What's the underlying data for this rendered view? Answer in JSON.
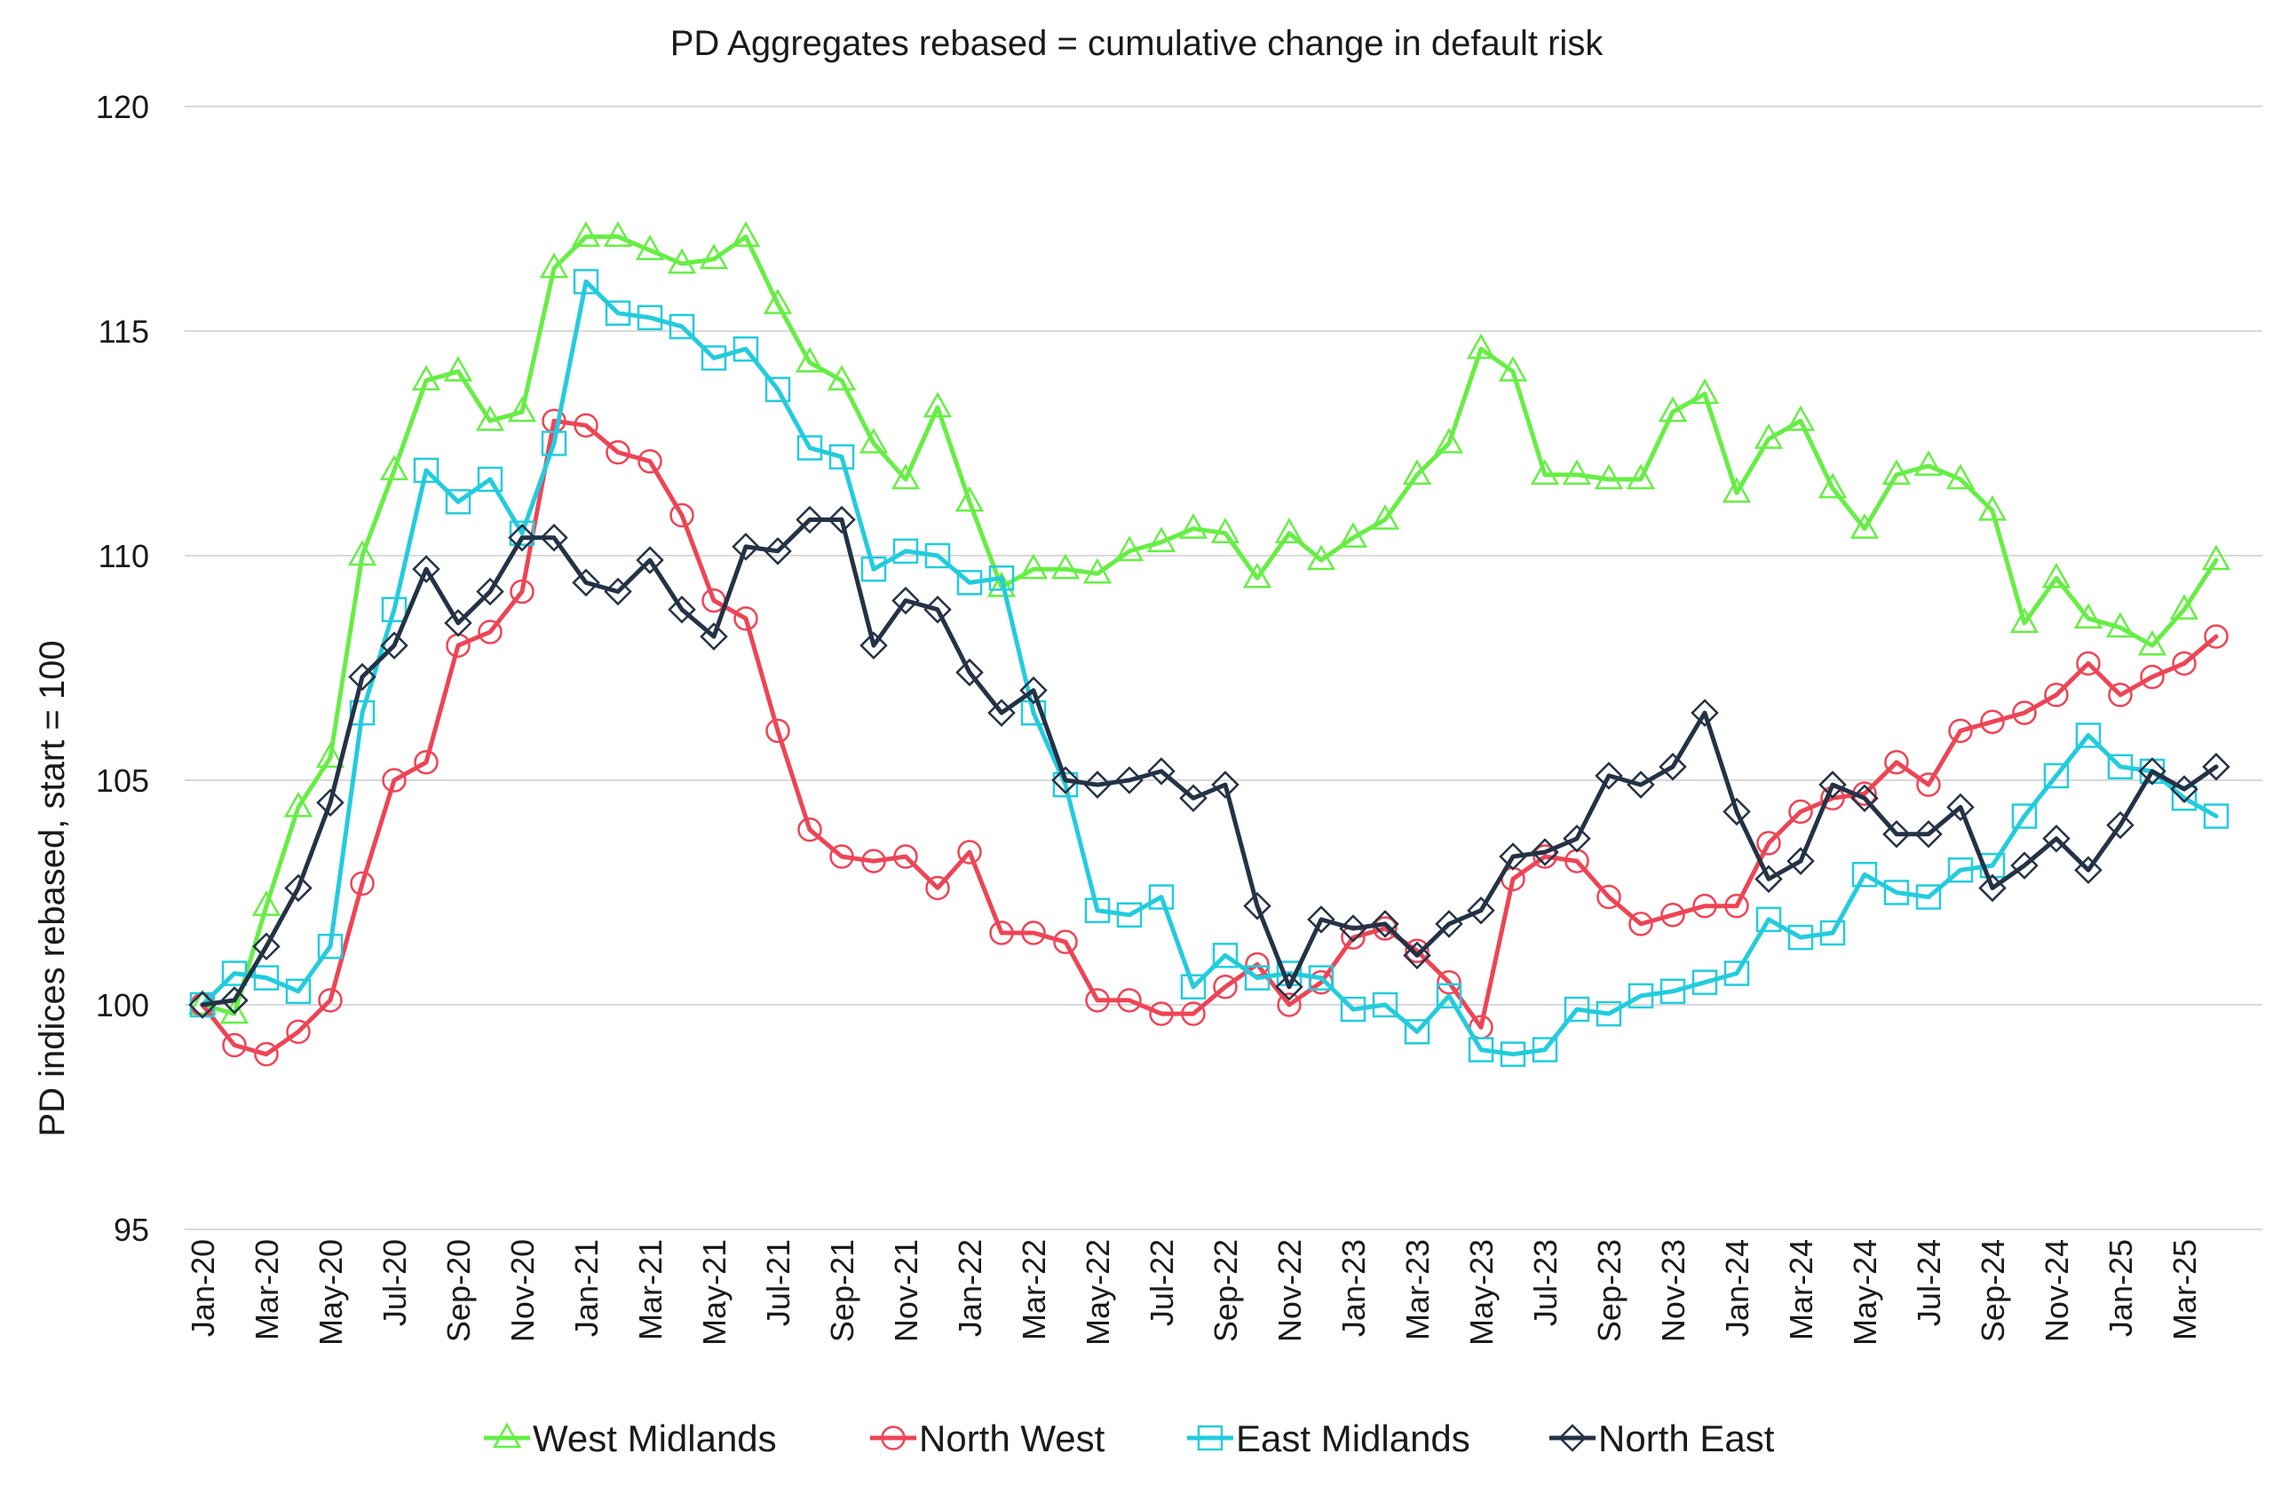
{
  "chart_data": {
    "type": "line",
    "title": "PD Aggregates rebased = cumulative change in default risk",
    "xlabel": "",
    "ylabel": "PD indices rebased, start = 100",
    "ylim": [
      95,
      120
    ],
    "yticks": [
      95,
      100,
      105,
      110,
      115,
      120
    ],
    "grid": true,
    "legend_position": "bottom",
    "tick_labels": [
      "Jan-20",
      "Mar-20",
      "May-20",
      "Jul-20",
      "Sep-20",
      "Nov-20",
      "Jan-21",
      "Mar-21",
      "May-21",
      "Jul-21",
      "Sep-21",
      "Nov-21",
      "Jan-22",
      "Mar-22",
      "May-22",
      "Jul-22",
      "Sep-22",
      "Nov-22",
      "Jan-23",
      "Mar-23",
      "May-23",
      "Jul-23",
      "Sep-23",
      "Nov-23",
      "Jan-24",
      "Mar-24",
      "May-24",
      "Jul-24",
      "Sep-24",
      "Nov-24",
      "Jan-25",
      "Mar-25"
    ],
    "tick_every": 2,
    "n_points": 65,
    "series": [
      {
        "name": "West Midlands",
        "color": "#66ee44",
        "marker": "triangle",
        "values": [
          100,
          99.8,
          102.2,
          104.4,
          105.5,
          110,
          111.9,
          113.9,
          114.1,
          113,
          113.2,
          116.4,
          117.1,
          117.1,
          116.8,
          116.5,
          116.6,
          117.1,
          115.6,
          114.3,
          113.9,
          112.5,
          111.7,
          113.3,
          111.2,
          109.3,
          109.7,
          109.7,
          109.6,
          110.1,
          110.3,
          110.6,
          110.5,
          109.5,
          110.5,
          109.9,
          110.4,
          110.8,
          111.8,
          112.5,
          114.6,
          114.1,
          111.8,
          111.8,
          111.7,
          111.7,
          113.2,
          113.6,
          111.4,
          112.6,
          113,
          111.5,
          110.6,
          111.8,
          112,
          111.7,
          111,
          108.5,
          109.5,
          108.6,
          108.4,
          108,
          108.8,
          109.9,
          null
        ]
      },
      {
        "name": "North West",
        "color": "#ee4455",
        "marker": "circle",
        "values": [
          100,
          99.1,
          98.9,
          99.4,
          100.1,
          102.7,
          105,
          105.4,
          108,
          108.3,
          109.2,
          113,
          112.9,
          112.3,
          112.1,
          110.9,
          109,
          108.6,
          106.1,
          103.9,
          103.3,
          103.2,
          103.3,
          102.6,
          103.4,
          101.6,
          101.6,
          101.4,
          100.1,
          100.1,
          99.8,
          99.8,
          100.4,
          100.9,
          100,
          100.5,
          101.5,
          101.7,
          101.2,
          100.5,
          99.5,
          102.8,
          103.3,
          103.2,
          102.4,
          101.8,
          102,
          102.2,
          102.2,
          103.6,
          104.3,
          104.6,
          104.7,
          105.4,
          104.9,
          106.1,
          106.3,
          106.5,
          106.9,
          107.6,
          106.9,
          107.3,
          107.6,
          108.2,
          null
        ]
      },
      {
        "name": "East Midlands",
        "color": "#22ccdd",
        "marker": "square",
        "values": [
          100,
          100.7,
          100.6,
          100.3,
          101.3,
          106.5,
          108.8,
          111.9,
          111.2,
          111.7,
          110.5,
          112.5,
          116.1,
          115.4,
          115.3,
          115.1,
          114.4,
          114.6,
          113.7,
          112.4,
          112.2,
          109.7,
          110.1,
          110,
          109.4,
          109.5,
          106.5,
          104.9,
          102.1,
          102,
          102.4,
          100.4,
          101.1,
          100.6,
          100.7,
          100.6,
          99.9,
          100,
          99.4,
          100.2,
          99,
          98.9,
          99,
          99.9,
          99.8,
          100.2,
          100.3,
          100.5,
          100.7,
          101.9,
          101.5,
          101.6,
          102.9,
          102.5,
          102.4,
          103,
          103.1,
          104.2,
          105.1,
          106,
          105.3,
          105.2,
          104.6,
          104.2,
          null
        ]
      },
      {
        "name": "North East",
        "color": "#243246",
        "marker": "diamond",
        "values": [
          100,
          100.1,
          101.3,
          102.6,
          104.5,
          107.3,
          108,
          109.7,
          108.5,
          109.2,
          110.4,
          110.4,
          109.4,
          109.2,
          109.9,
          108.8,
          108.2,
          110.2,
          110.1,
          110.8,
          110.8,
          108,
          109,
          108.8,
          107.4,
          106.5,
          107,
          105,
          104.9,
          105,
          105.2,
          104.6,
          104.9,
          102.2,
          100.4,
          101.9,
          101.7,
          101.8,
          101.1,
          101.8,
          102.1,
          103.3,
          103.4,
          103.7,
          105.1,
          104.9,
          105.3,
          106.5,
          104.3,
          102.8,
          103.2,
          104.9,
          104.6,
          103.8,
          103.8,
          104.4,
          102.6,
          103.1,
          103.7,
          103,
          104,
          105.2,
          104.8,
          105.3,
          null
        ]
      }
    ]
  }
}
